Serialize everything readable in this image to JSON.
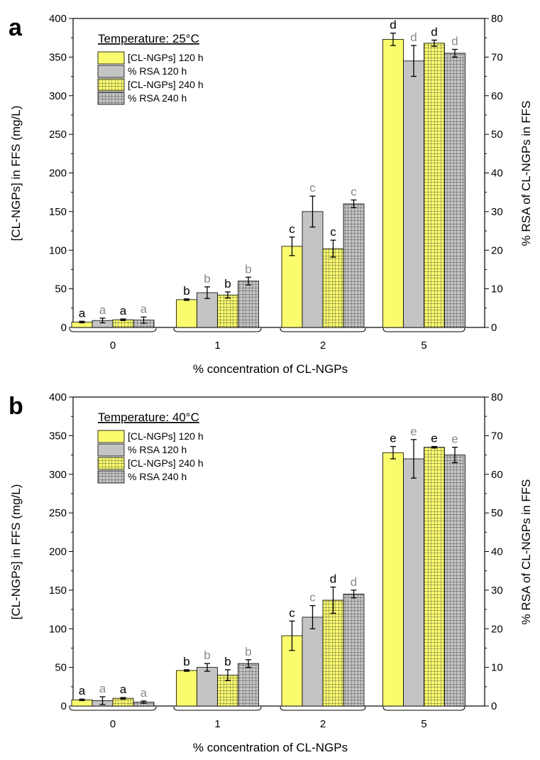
{
  "figure": {
    "legend_labels": [
      "[CL-NGPs] 120 h",
      "% RSA 120 h",
      "[CL-NGPs] 240 h",
      "% RSA 240 h"
    ],
    "colors": {
      "yellow": "#fbfb6e",
      "grey": "#c4c4c4",
      "axis": "#000000",
      "letter_dark": "#000000",
      "letter_grey": "#8a8a8a"
    }
  },
  "chart_data": [
    {
      "panel_label": "a",
      "type": "bar",
      "legend_title": "Temperature: 25°C",
      "xlabel": "% concentration of CL-NGPs",
      "ylabel_left": "[CL-NGPs] in FFS (mg/L)",
      "ylabel_right": "% RSA of CL-NGPs in FFS",
      "ylim_left": [
        0,
        400
      ],
      "ylim_right": [
        0,
        80
      ],
      "yticks_left": [
        "0",
        "50",
        "100",
        "150",
        "200",
        "250",
        "300",
        "350",
        "400"
      ],
      "yticks_right": [
        "0",
        "10",
        "20",
        "30",
        "40",
        "50",
        "60",
        "70",
        "80"
      ],
      "categories": [
        "0",
        "1",
        "2",
        "5"
      ],
      "series": [
        {
          "name": "[CL-NGPs] 120 h",
          "axis": "left",
          "values": [
            7,
            36,
            105,
            373
          ],
          "errors": [
            1,
            1,
            12,
            8
          ],
          "letters": [
            "a",
            "b",
            "c",
            "d"
          ]
        },
        {
          "name": "% RSA 120 h",
          "axis": "right",
          "values": [
            1.8,
            9,
            30,
            69
          ],
          "errors": [
            0.6,
            1.5,
            4,
            4
          ],
          "letters": [
            "a",
            "b",
            "c",
            "d"
          ]
        },
        {
          "name": "[CL-NGPs] 240 h",
          "axis": "left",
          "values": [
            10,
            42,
            102,
            368
          ],
          "errors": [
            1,
            4,
            11,
            4
          ],
          "letters": [
            "a",
            "b",
            "c",
            "d"
          ]
        },
        {
          "name": "% RSA 240 h",
          "axis": "right",
          "values": [
            1.9,
            12,
            32,
            71
          ],
          "errors": [
            0.8,
            1,
            1,
            1
          ],
          "letters": [
            "a",
            "b",
            "c",
            "d"
          ]
        }
      ]
    },
    {
      "panel_label": "b",
      "type": "bar",
      "legend_title": "Temperature: 40°C",
      "xlabel": "% concentration of CL-NGPs",
      "ylabel_left": "[CL-NGPs] in FFS (mg/L)",
      "ylabel_right": "% RSA of CL-NGPs in FFS",
      "ylim_left": [
        0,
        400
      ],
      "ylim_right": [
        0,
        80
      ],
      "yticks_left": [
        "0",
        "50",
        "100",
        "150",
        "200",
        "250",
        "300",
        "350",
        "400"
      ],
      "yticks_right": [
        "0",
        "10",
        "20",
        "30",
        "40",
        "50",
        "60",
        "70",
        "80"
      ],
      "categories": [
        "0",
        "1",
        "2",
        "5"
      ],
      "series": [
        {
          "name": "[CL-NGPs] 120 h",
          "axis": "left",
          "values": [
            8,
            46,
            91,
            328
          ],
          "errors": [
            1,
            1,
            19,
            8
          ],
          "letters": [
            "a",
            "b",
            "c",
            "e"
          ]
        },
        {
          "name": "% RSA 120 h",
          "axis": "right",
          "values": [
            1.4,
            10,
            23,
            64
          ],
          "errors": [
            1,
            1,
            3,
            5
          ],
          "letters": [
            "a",
            "b",
            "c",
            "e"
          ]
        },
        {
          "name": "[CL-NGPs] 240 h",
          "axis": "left",
          "values": [
            10,
            40,
            137,
            335
          ],
          "errors": [
            1,
            7,
            17,
            1
          ],
          "letters": [
            "a",
            "b",
            "d",
            "e"
          ]
        },
        {
          "name": "% RSA 240 h",
          "axis": "right",
          "values": [
            1,
            11,
            29,
            65
          ],
          "errors": [
            0.3,
            1,
            1,
            2
          ],
          "letters": [
            "a",
            "b",
            "d",
            "e"
          ]
        }
      ]
    }
  ]
}
